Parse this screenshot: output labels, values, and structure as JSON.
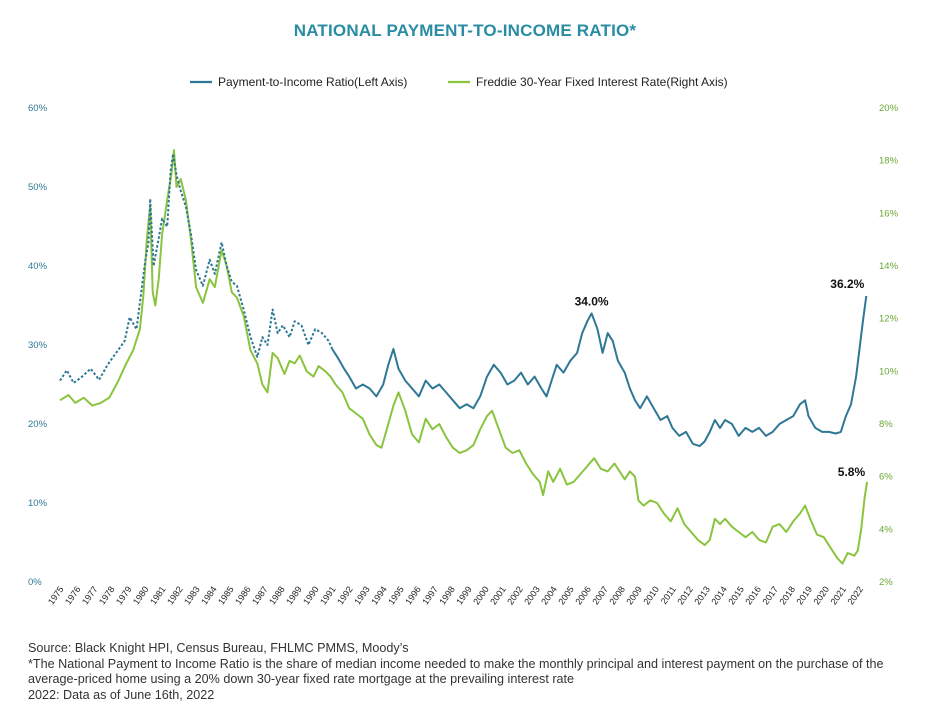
{
  "title": "NATIONAL PAYMENT-TO-INCOME RATIO*",
  "colors": {
    "title": "#2a8ca3",
    "left_series": "#2e7895",
    "right_series": "#8ac43f",
    "left_axis_text": "#2e7895",
    "right_axis_text": "#6aa833"
  },
  "chart_data": {
    "type": "line",
    "title": "NATIONAL PAYMENT-TO-INCOME RATIO*",
    "legend_placement": "top-center",
    "grid": false,
    "x_tick_labels": [
      "1975",
      "1976",
      "1977",
      "1978",
      "1979",
      "1980",
      "1981",
      "1982",
      "1983",
      "1984",
      "1985",
      "1986",
      "1987",
      "1988",
      "1989",
      "1990",
      "1991",
      "1992",
      "1993",
      "1994",
      "1995",
      "1996",
      "1997",
      "1998",
      "1999",
      "2000",
      "2001",
      "2002",
      "2003",
      "2004",
      "2005",
      "2006",
      "2007",
      "2008",
      "2009",
      "2010",
      "2011",
      "2012",
      "2013",
      "2014",
      "2015",
      "2016",
      "2017",
      "2018",
      "2019",
      "2020",
      "2021",
      "2022"
    ],
    "xlim": [
      1975.0,
      2022.5
    ],
    "y_left": {
      "ticks": [
        "0%",
        "10%",
        "20%",
        "30%",
        "40%",
        "50%",
        "60%"
      ],
      "ylim": [
        0,
        60
      ]
    },
    "y_right": {
      "ticks": [
        "2%",
        "4%",
        "6%",
        "8%",
        "10%",
        "12%",
        "14%",
        "16%",
        "18%",
        "20%"
      ],
      "ylim": [
        2,
        20
      ]
    },
    "series": [
      {
        "name": "Payment-to-Income Ratio(Left Axis)",
        "axis": "left",
        "color": "#2e7895",
        "dashed_until": 1991.0,
        "points": [
          [
            1975.0,
            25.5
          ],
          [
            1975.4,
            26.8
          ],
          [
            1975.8,
            25.2
          ],
          [
            1976.3,
            26.0
          ],
          [
            1976.8,
            27.0
          ],
          [
            1977.3,
            25.6
          ],
          [
            1977.8,
            27.5
          ],
          [
            1978.3,
            29.0
          ],
          [
            1978.8,
            30.5
          ],
          [
            1979.1,
            33.5
          ],
          [
            1979.5,
            32.0
          ],
          [
            1980.0,
            40.5
          ],
          [
            1980.2,
            43.0
          ],
          [
            1980.3,
            48.5
          ],
          [
            1980.5,
            40.0
          ],
          [
            1980.8,
            43.5
          ],
          [
            1981.0,
            46.0
          ],
          [
            1981.3,
            45.0
          ],
          [
            1981.5,
            52.0
          ],
          [
            1981.65,
            54.2
          ],
          [
            1981.85,
            51.5
          ],
          [
            1982.1,
            49.5
          ],
          [
            1982.4,
            47.5
          ],
          [
            1982.7,
            44.0
          ],
          [
            1983.0,
            39.5
          ],
          [
            1983.4,
            37.5
          ],
          [
            1983.8,
            40.8
          ],
          [
            1984.1,
            39.0
          ],
          [
            1984.5,
            43.0
          ],
          [
            1984.8,
            40.0
          ],
          [
            1985.1,
            38.0
          ],
          [
            1985.4,
            37.5
          ],
          [
            1985.8,
            34.5
          ],
          [
            1986.2,
            31.0
          ],
          [
            1986.6,
            28.5
          ],
          [
            1986.9,
            31.0
          ],
          [
            1987.2,
            30.0
          ],
          [
            1987.5,
            34.5
          ],
          [
            1987.8,
            31.5
          ],
          [
            1988.1,
            32.5
          ],
          [
            1988.5,
            31.0
          ],
          [
            1988.8,
            33.0
          ],
          [
            1989.2,
            32.5
          ],
          [
            1989.6,
            30.0
          ],
          [
            1990.0,
            32.0
          ],
          [
            1990.4,
            31.5
          ],
          [
            1990.8,
            30.5
          ],
          [
            1991.0,
            29.5
          ],
          [
            1991.3,
            28.5
          ],
          [
            1991.7,
            27.0
          ],
          [
            1992.0,
            26.0
          ],
          [
            1992.4,
            24.5
          ],
          [
            1992.8,
            25.0
          ],
          [
            1993.2,
            24.5
          ],
          [
            1993.6,
            23.5
          ],
          [
            1994.0,
            25.0
          ],
          [
            1994.3,
            27.5
          ],
          [
            1994.6,
            29.5
          ],
          [
            1994.9,
            27.0
          ],
          [
            1995.3,
            25.5
          ],
          [
            1995.7,
            24.5
          ],
          [
            1996.1,
            23.5
          ],
          [
            1996.5,
            25.5
          ],
          [
            1996.9,
            24.5
          ],
          [
            1997.3,
            25.0
          ],
          [
            1997.7,
            24.0
          ],
          [
            1998.1,
            23.0
          ],
          [
            1998.5,
            22.0
          ],
          [
            1998.9,
            22.5
          ],
          [
            1999.3,
            22.0
          ],
          [
            1999.7,
            23.5
          ],
          [
            2000.1,
            26.0
          ],
          [
            2000.5,
            27.5
          ],
          [
            2000.9,
            26.5
          ],
          [
            2001.3,
            25.0
          ],
          [
            2001.7,
            25.5
          ],
          [
            2002.1,
            26.5
          ],
          [
            2002.5,
            25.0
          ],
          [
            2002.9,
            26.0
          ],
          [
            2003.3,
            24.5
          ],
          [
            2003.6,
            23.5
          ],
          [
            2003.9,
            25.5
          ],
          [
            2004.2,
            27.5
          ],
          [
            2004.6,
            26.5
          ],
          [
            2005.0,
            28.0
          ],
          [
            2005.4,
            29.0
          ],
          [
            2005.7,
            31.5
          ],
          [
            2006.0,
            33.0
          ],
          [
            2006.25,
            34.0
          ],
          [
            2006.6,
            32.0
          ],
          [
            2006.9,
            29.0
          ],
          [
            2007.2,
            31.5
          ],
          [
            2007.5,
            30.5
          ],
          [
            2007.8,
            28.0
          ],
          [
            2008.2,
            26.5
          ],
          [
            2008.5,
            24.5
          ],
          [
            2008.8,
            23.0
          ],
          [
            2009.1,
            22.0
          ],
          [
            2009.5,
            23.5
          ],
          [
            2009.9,
            22.0
          ],
          [
            2010.3,
            20.5
          ],
          [
            2010.7,
            21.0
          ],
          [
            2011.0,
            19.5
          ],
          [
            2011.4,
            18.5
          ],
          [
            2011.8,
            19.0
          ],
          [
            2012.2,
            17.5
          ],
          [
            2012.6,
            17.2
          ],
          [
            2012.9,
            17.8
          ],
          [
            2013.2,
            19.0
          ],
          [
            2013.5,
            20.5
          ],
          [
            2013.8,
            19.5
          ],
          [
            2014.1,
            20.5
          ],
          [
            2014.5,
            20.0
          ],
          [
            2014.9,
            18.5
          ],
          [
            2015.3,
            19.5
          ],
          [
            2015.7,
            19.0
          ],
          [
            2016.1,
            19.5
          ],
          [
            2016.5,
            18.5
          ],
          [
            2016.9,
            19.0
          ],
          [
            2017.3,
            20.0
          ],
          [
            2017.7,
            20.5
          ],
          [
            2018.1,
            21.0
          ],
          [
            2018.5,
            22.5
          ],
          [
            2018.8,
            23.0
          ],
          [
            2019.0,
            21.0
          ],
          [
            2019.4,
            19.5
          ],
          [
            2019.8,
            19.0
          ],
          [
            2020.2,
            19.0
          ],
          [
            2020.6,
            18.8
          ],
          [
            2020.9,
            19.0
          ],
          [
            2021.2,
            21.0
          ],
          [
            2021.5,
            22.5
          ],
          [
            2021.8,
            26.0
          ],
          [
            2022.0,
            29.5
          ],
          [
            2022.2,
            33.0
          ],
          [
            2022.4,
            36.2
          ]
        ],
        "annotations": [
          {
            "x": 2006.25,
            "y": 34.0,
            "label": "34.0%"
          },
          {
            "x": 2022.4,
            "y": 36.2,
            "label": "36.2%"
          }
        ]
      },
      {
        "name": "Freddie 30-Year Fixed Interest Rate(Right Axis)",
        "axis": "right",
        "color": "#8ac43f",
        "points": [
          [
            1975.0,
            8.9
          ],
          [
            1975.5,
            9.1
          ],
          [
            1975.9,
            8.8
          ],
          [
            1976.4,
            9.0
          ],
          [
            1976.9,
            8.7
          ],
          [
            1977.4,
            8.8
          ],
          [
            1977.9,
            9.0
          ],
          [
            1978.4,
            9.6
          ],
          [
            1978.9,
            10.3
          ],
          [
            1979.3,
            10.8
          ],
          [
            1979.7,
            11.6
          ],
          [
            1979.9,
            12.9
          ],
          [
            1980.1,
            15.0
          ],
          [
            1980.3,
            16.3
          ],
          [
            1980.45,
            13.0
          ],
          [
            1980.6,
            12.5
          ],
          [
            1980.8,
            13.5
          ],
          [
            1981.0,
            15.2
          ],
          [
            1981.3,
            16.5
          ],
          [
            1981.55,
            17.5
          ],
          [
            1981.7,
            18.4
          ],
          [
            1981.85,
            17.0
          ],
          [
            1982.1,
            17.3
          ],
          [
            1982.4,
            16.5
          ],
          [
            1982.7,
            15.0
          ],
          [
            1983.0,
            13.2
          ],
          [
            1983.4,
            12.6
          ],
          [
            1983.8,
            13.5
          ],
          [
            1984.1,
            13.2
          ],
          [
            1984.5,
            14.6
          ],
          [
            1984.8,
            14.0
          ],
          [
            1985.1,
            13.0
          ],
          [
            1985.4,
            12.8
          ],
          [
            1985.8,
            12.1
          ],
          [
            1986.2,
            10.8
          ],
          [
            1986.6,
            10.3
          ],
          [
            1986.9,
            9.5
          ],
          [
            1987.2,
            9.2
          ],
          [
            1987.5,
            10.7
          ],
          [
            1987.8,
            10.5
          ],
          [
            1988.2,
            9.9
          ],
          [
            1988.5,
            10.4
          ],
          [
            1988.8,
            10.3
          ],
          [
            1989.1,
            10.6
          ],
          [
            1989.5,
            10.0
          ],
          [
            1989.9,
            9.8
          ],
          [
            1990.2,
            10.2
          ],
          [
            1990.6,
            10.0
          ],
          [
            1990.9,
            9.8
          ],
          [
            1991.2,
            9.5
          ],
          [
            1991.6,
            9.2
          ],
          [
            1992.0,
            8.6
          ],
          [
            1992.4,
            8.4
          ],
          [
            1992.8,
            8.2
          ],
          [
            1993.2,
            7.6
          ],
          [
            1993.6,
            7.2
          ],
          [
            1993.9,
            7.1
          ],
          [
            1994.3,
            8.0
          ],
          [
            1994.6,
            8.7
          ],
          [
            1994.9,
            9.2
          ],
          [
            1995.3,
            8.5
          ],
          [
            1995.7,
            7.6
          ],
          [
            1996.1,
            7.3
          ],
          [
            1996.5,
            8.2
          ],
          [
            1996.9,
            7.8
          ],
          [
            1997.3,
            8.0
          ],
          [
            1997.7,
            7.5
          ],
          [
            1998.1,
            7.1
          ],
          [
            1998.5,
            6.9
          ],
          [
            1998.9,
            7.0
          ],
          [
            1999.3,
            7.2
          ],
          [
            1999.7,
            7.8
          ],
          [
            2000.1,
            8.3
          ],
          [
            2000.4,
            8.5
          ],
          [
            2000.8,
            7.8
          ],
          [
            2001.2,
            7.1
          ],
          [
            2001.6,
            6.9
          ],
          [
            2002.0,
            7.0
          ],
          [
            2002.4,
            6.5
          ],
          [
            2002.8,
            6.1
          ],
          [
            2003.2,
            5.8
          ],
          [
            2003.4,
            5.3
          ],
          [
            2003.7,
            6.2
          ],
          [
            2004.0,
            5.8
          ],
          [
            2004.4,
            6.3
          ],
          [
            2004.8,
            5.7
          ],
          [
            2005.2,
            5.8
          ],
          [
            2005.6,
            6.1
          ],
          [
            2006.0,
            6.4
          ],
          [
            2006.4,
            6.7
          ],
          [
            2006.8,
            6.3
          ],
          [
            2007.2,
            6.2
          ],
          [
            2007.6,
            6.5
          ],
          [
            2007.9,
            6.2
          ],
          [
            2008.2,
            5.9
          ],
          [
            2008.5,
            6.2
          ],
          [
            2008.8,
            6.0
          ],
          [
            2009.0,
            5.1
          ],
          [
            2009.3,
            4.9
          ],
          [
            2009.7,
            5.1
          ],
          [
            2010.1,
            5.0
          ],
          [
            2010.5,
            4.6
          ],
          [
            2010.9,
            4.3
          ],
          [
            2011.3,
            4.8
          ],
          [
            2011.7,
            4.2
          ],
          [
            2012.1,
            3.9
          ],
          [
            2012.5,
            3.6
          ],
          [
            2012.9,
            3.4
          ],
          [
            2013.2,
            3.6
          ],
          [
            2013.5,
            4.4
          ],
          [
            2013.8,
            4.2
          ],
          [
            2014.1,
            4.4
          ],
          [
            2014.5,
            4.1
          ],
          [
            2014.9,
            3.9
          ],
          [
            2015.3,
            3.7
          ],
          [
            2015.7,
            3.9
          ],
          [
            2016.1,
            3.6
          ],
          [
            2016.5,
            3.5
          ],
          [
            2016.9,
            4.1
          ],
          [
            2017.3,
            4.2
          ],
          [
            2017.7,
            3.9
          ],
          [
            2018.1,
            4.3
          ],
          [
            2018.5,
            4.6
          ],
          [
            2018.8,
            4.9
          ],
          [
            2019.1,
            4.4
          ],
          [
            2019.5,
            3.8
          ],
          [
            2019.9,
            3.7
          ],
          [
            2020.3,
            3.3
          ],
          [
            2020.7,
            2.9
          ],
          [
            2021.0,
            2.7
          ],
          [
            2021.3,
            3.1
          ],
          [
            2021.7,
            3.0
          ],
          [
            2021.9,
            3.2
          ],
          [
            2022.1,
            4.0
          ],
          [
            2022.3,
            5.2
          ],
          [
            2022.45,
            5.8
          ]
        ],
        "annotations": [
          {
            "x": 2022.45,
            "y": 5.8,
            "label": "5.8%"
          }
        ]
      }
    ]
  },
  "footer": {
    "source": "Source: Black Knight HPI, Census Bureau, FHLMC PMMS, Moody’s",
    "note": "*The National Payment to Income Ratio is the share of median income needed to make the monthly principal and interest payment on the purchase of the average-priced home using a 20% down 30-year fixed rate mortgage at the prevailing interest rate",
    "data_as_of": "2022: Data as of June 16th, 2022"
  }
}
